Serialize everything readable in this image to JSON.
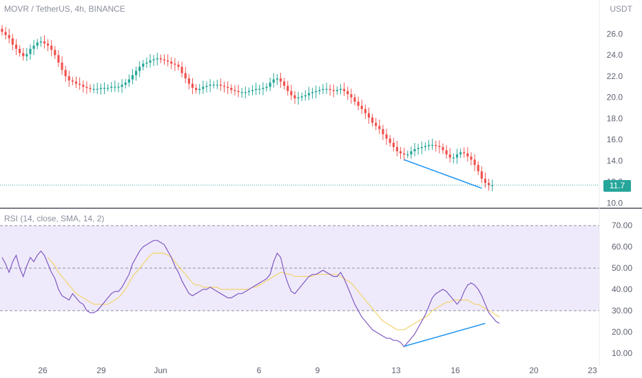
{
  "header": {
    "symbol_title": "MOVR / TetherUS, 4h, BINANCE",
    "currency": "USDT",
    "last_price_tag": "11.7"
  },
  "rsi_panel": {
    "title": "RSI (14, close, SMA, 14, 2)"
  },
  "colors": {
    "up": "#26a69a",
    "down": "#ef5350",
    "trendline": "#2196f3",
    "rsi_line": "#7e57c2",
    "rsi_ma": "#f2d36b",
    "rsi_band": "#efeafb"
  },
  "chart_data": [
    {
      "type": "candlestick",
      "title": "MOVR / TetherUS, 4h, BINANCE",
      "ylabel": "USDT",
      "ylim": [
        9.7,
        27.4
      ],
      "y_ticks": [
        "26.0",
        "24.0",
        "22.0",
        "20.0",
        "18.0",
        "16.0",
        "14.0",
        "12.0",
        "10.0"
      ],
      "x_ticks": [
        "26",
        "29",
        "Jun",
        "6",
        "9",
        "13",
        "16",
        "20",
        "23"
      ],
      "last_price": 11.7,
      "close": [
        26.2,
        25.9,
        25.6,
        25.0,
        24.6,
        24.2,
        23.9,
        24.1,
        24.6,
        24.9,
        25.2,
        25.3,
        25.1,
        24.9,
        24.5,
        24.0,
        23.3,
        22.6,
        22.0,
        21.6,
        21.5,
        21.3,
        21.2,
        21.0,
        20.9,
        20.8,
        20.8,
        20.8,
        20.9,
        20.9,
        20.9,
        21.0,
        21.0,
        21.0,
        21.2,
        21.4,
        21.7,
        22.1,
        22.5,
        22.9,
        23.2,
        23.3,
        23.5,
        23.6,
        23.7,
        23.6,
        23.5,
        23.4,
        23.2,
        23.1,
        22.9,
        22.3,
        21.8,
        21.3,
        20.9,
        20.7,
        20.8,
        21.0,
        21.1,
        21.2,
        21.2,
        21.2,
        21.1,
        21.0,
        20.9,
        20.7,
        20.6,
        20.5,
        20.5,
        20.5,
        20.6,
        20.7,
        20.8,
        20.8,
        20.9,
        21.0,
        21.4,
        21.7,
        21.8,
        21.5,
        21.1,
        20.6,
        20.2,
        19.9,
        20.0,
        20.1,
        20.2,
        20.4,
        20.5,
        20.6,
        20.7,
        20.8,
        20.8,
        20.7,
        20.6,
        20.7,
        20.8,
        20.6,
        20.3,
        20.0,
        19.6,
        19.2,
        18.9,
        18.5,
        18.1,
        17.6,
        17.3,
        17.0,
        16.5,
        16.1,
        15.7,
        15.3,
        14.9,
        14.7,
        14.6,
        14.6,
        14.9,
        15.1,
        15.2,
        15.3,
        15.4,
        15.5,
        15.5,
        15.4,
        15.3,
        15.0,
        14.6,
        14.3,
        14.3,
        14.6,
        14.8,
        14.7,
        14.4,
        14.1,
        13.6,
        13.0,
        12.3,
        11.9,
        11.7,
        11.7
      ],
      "trendlines": [
        {
          "x_index": [
            114,
            136
          ],
          "y": [
            14.1,
            11.4
          ]
        }
      ]
    },
    {
      "type": "line",
      "title": "RSI (14, close, SMA, 14, 2)",
      "ylim": [
        8,
        72
      ],
      "y_ticks": [
        "70.00",
        "60.00",
        "50.00",
        "40.00",
        "30.00",
        "20.00",
        "10.00"
      ],
      "bands": [
        30,
        50,
        70
      ],
      "series": [
        {
          "role": "rsi",
          "values": [
            55,
            52,
            48,
            53,
            56,
            50,
            46,
            51,
            55,
            53,
            56,
            58,
            56,
            52,
            48,
            45,
            40,
            37,
            36,
            35,
            38,
            36,
            34,
            33,
            30,
            29,
            29,
            30,
            32,
            34,
            36,
            38,
            39,
            39,
            41,
            44,
            47,
            52,
            55,
            58,
            60,
            61,
            62,
            63,
            63,
            62,
            61,
            58,
            55,
            51,
            48,
            44,
            41,
            38,
            37,
            38,
            39,
            40,
            40,
            41,
            40,
            39,
            38,
            37,
            36,
            36,
            37,
            38,
            38,
            39,
            40,
            41,
            42,
            43,
            44,
            45,
            47,
            53,
            57,
            55,
            48,
            43,
            39,
            38,
            40,
            42,
            44,
            46,
            47,
            47,
            48,
            49,
            48,
            47,
            46,
            46,
            48,
            45,
            41,
            37,
            33,
            30,
            27,
            25,
            23,
            21,
            20,
            19,
            18,
            17,
            17,
            16,
            16,
            15,
            13,
            15,
            17,
            19,
            22,
            25,
            28,
            32,
            36,
            38,
            39,
            40,
            39,
            37,
            35,
            33,
            35,
            39,
            42,
            43,
            42,
            40,
            37,
            33,
            29,
            27,
            25,
            24
          ]
        },
        {
          "role": "rsi-ma",
          "values": [
            null,
            null,
            null,
            null,
            null,
            null,
            null,
            null,
            null,
            null,
            null,
            null,
            null,
            55,
            53,
            51,
            48,
            46,
            44,
            42,
            40,
            38,
            37,
            36,
            35,
            34,
            33,
            33,
            33,
            33,
            33,
            34,
            35,
            36,
            38,
            40,
            43,
            46,
            48,
            50,
            52,
            54,
            56,
            57,
            57,
            57,
            57,
            56,
            55,
            53,
            51,
            49,
            47,
            45,
            43,
            42,
            42,
            41,
            41,
            41,
            41,
            41,
            40,
            40,
            40,
            40,
            40,
            40,
            40,
            40,
            40,
            41,
            41,
            42,
            43,
            44,
            45,
            46,
            47,
            48,
            48,
            47,
            47,
            46,
            46,
            46,
            46,
            46,
            46,
            47,
            47,
            47,
            47,
            47,
            47,
            47,
            46,
            45,
            44,
            43,
            41,
            39,
            37,
            35,
            33,
            31,
            29,
            27,
            25,
            24,
            23,
            22,
            21,
            21,
            21,
            22,
            23,
            24,
            25,
            26,
            27,
            28,
            30,
            31,
            32,
            33,
            34,
            34,
            35,
            35,
            35,
            35,
            35,
            34,
            33,
            33,
            32,
            31,
            30,
            29,
            28,
            27
          ]
        }
      ],
      "trendlines": [
        {
          "x_index": [
            114,
            137
          ],
          "y": [
            13.2,
            24.0
          ]
        }
      ]
    }
  ]
}
